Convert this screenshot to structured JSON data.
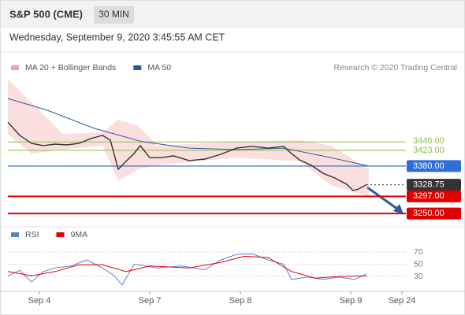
{
  "header": {
    "title": "S&P 500 (CME)",
    "interval": "30 MIN",
    "date": "Wednesday, September 9, 2020 3:45:55 AM CET"
  },
  "chart_data": [
    {
      "type": "line",
      "annotation": "Research © 2020 Trading Central",
      "xlim": [
        0,
        102
      ],
      "ylim": [
        3220,
        3630
      ],
      "band": {
        "name": "MA 20 + Bollinger Bands",
        "color": "#f4a3a3",
        "x": [
          0,
          6,
          14,
          24,
          28,
          33,
          38,
          58,
          74,
          82,
          91.6
        ],
        "upper": [
          3619,
          3554,
          3468,
          3472,
          3507,
          3490,
          3436,
          3447,
          3451,
          3436,
          3371
        ],
        "lower": [
          3468,
          3414,
          3425,
          3436,
          3339,
          3371,
          3382,
          3403,
          3393,
          3328,
          3296
        ]
      },
      "series": [
        {
          "name": "MA 50",
          "color": "#2c5a9a",
          "x": [
            0,
            10,
            22,
            34,
            46,
            58,
            70,
            82,
            91.6
          ],
          "values": [
            3565,
            3533,
            3483,
            3447,
            3429,
            3425,
            3429,
            3403,
            3380
          ]
        },
        {
          "color": "#333333",
          "x": [
            0,
            3,
            6,
            9,
            12,
            15,
            18,
            21,
            24,
            26,
            28,
            30,
            32,
            33.6,
            36,
            39,
            42,
            46,
            50,
            54,
            58,
            62,
            66,
            70,
            72,
            74,
            77,
            80,
            83,
            86,
            87.6,
            89,
            91
          ],
          "values": [
            3500,
            3464,
            3442,
            3436,
            3440,
            3438,
            3442,
            3455,
            3464,
            3451,
            3371,
            3393,
            3414,
            3436,
            3403,
            3403,
            3408,
            3395,
            3399,
            3412,
            3429,
            3434,
            3429,
            3434,
            3414,
            3397,
            3382,
            3360,
            3347,
            3330,
            3313,
            3317,
            3328.75
          ]
        }
      ],
      "levels": [
        {
          "value": 3446,
          "label": "3446.00",
          "color": "#8fbf4a",
          "boxed": false
        },
        {
          "value": 3423,
          "label": "3423.00",
          "color": "#8fbf4a",
          "boxed": false
        },
        {
          "value": 3380,
          "label": "3380.00",
          "color": "#2f6fd6",
          "boxed": true
        },
        {
          "value": 3328.75,
          "color": "#333333",
          "boxed": true,
          "dotted": true
        },
        {
          "value": 3297,
          "label": "3297.00",
          "color": "#e00000",
          "boxed": true
        },
        {
          "value": 3250,
          "label": "3250.00",
          "color": "#e00000",
          "boxed": true
        }
      ]
    },
    {
      "type": "line",
      "xlim": [
        0,
        102
      ],
      "ylim": [
        5,
        90
      ],
      "yticks": [
        30,
        50,
        70
      ],
      "xticks": [
        {
          "value": 8,
          "label": "Sep 4"
        },
        {
          "value": 36,
          "label": "Sep 7"
        },
        {
          "value": 59,
          "label": "Sep 8"
        },
        {
          "value": 87,
          "label": "Sep 9"
        },
        {
          "value": 100,
          "label": "Sep 24"
        }
      ],
      "series": [
        {
          "name": "RSI",
          "color": "#5b7fd6",
          "x": [
            0,
            3,
            6,
            9,
            12,
            16,
            20,
            24,
            27,
            29,
            32,
            35,
            38,
            44,
            50,
            54,
            58,
            62,
            66,
            70,
            72,
            76,
            80,
            84,
            88,
            91
          ],
          "values": [
            31,
            40,
            21,
            38,
            44,
            47,
            57,
            44,
            31,
            16,
            50,
            47,
            44,
            47,
            41,
            57,
            66,
            67,
            57,
            50,
            25,
            29,
            25,
            29,
            25,
            34
          ]
        },
        {
          "name": "9MA",
          "color": "#e00000",
          "x": [
            0,
            6,
            12,
            18,
            24,
            30,
            36,
            46,
            54,
            60,
            66,
            72,
            78,
            84,
            91
          ],
          "values": [
            38,
            31,
            38,
            49,
            49,
            38,
            47,
            44,
            53,
            63,
            61,
            38,
            27,
            30,
            31
          ]
        }
      ]
    }
  ]
}
